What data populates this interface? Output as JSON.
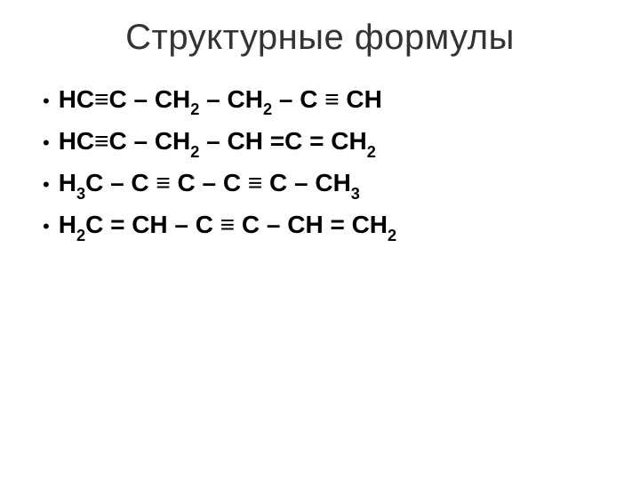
{
  "title": "Структурные формулы",
  "title_fontsize": 40,
  "title_color": "#333333",
  "body_fontsize": 28,
  "body_fontweight": 700,
  "body_color": "#000000",
  "background_color": "#ffffff",
  "bullet_marker": "•",
  "formulas": [
    {
      "tokens": [
        {
          "t": "HC≡C – CH"
        },
        {
          "t": "2",
          "sub": true
        },
        {
          "t": " – CH"
        },
        {
          "t": "2",
          "sub": true
        },
        {
          "t": " – C ≡ CH"
        }
      ]
    },
    {
      "tokens": [
        {
          "t": "HC≡C – CH"
        },
        {
          "t": "2",
          "sub": true
        },
        {
          "t": " – CH =C = CH"
        },
        {
          "t": "2",
          "sub": true
        }
      ]
    },
    {
      "tokens": [
        {
          "t": "H"
        },
        {
          "t": "3",
          "sub": true
        },
        {
          "t": "C – C ≡ C – C ≡ C – CH"
        },
        {
          "t": "3",
          "sub": true
        }
      ]
    },
    {
      "tokens": [
        {
          "t": "H"
        },
        {
          "t": "2",
          "sub": true
        },
        {
          "t": "C = CH – C ≡ C – CH = CH"
        },
        {
          "t": "2",
          "sub": true
        }
      ]
    }
  ]
}
